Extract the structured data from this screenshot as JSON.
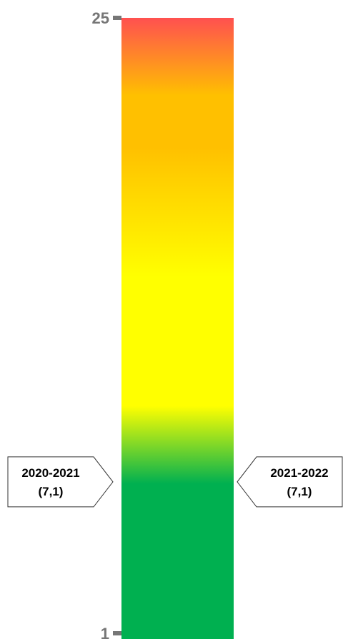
{
  "chart_data": {
    "type": "gauge",
    "orientation": "vertical",
    "ylim": [
      1,
      25
    ],
    "ticks": [
      {
        "value": 25,
        "label": "25"
      },
      {
        "value": 1,
        "label": "1"
      }
    ],
    "color_stops": [
      {
        "value": 1,
        "color": "#00b050"
      },
      {
        "value": 7,
        "color": "#00b050"
      },
      {
        "value": 10,
        "color": "#ffff00"
      },
      {
        "value": 15,
        "color": "#ffff00"
      },
      {
        "value": 20,
        "color": "#ffc000"
      },
      {
        "value": 22,
        "color": "#ffc000"
      },
      {
        "value": 25,
        "color": "#ff5050"
      }
    ],
    "markers": [
      {
        "period": "2020-2021",
        "value_label": "(7,1)",
        "value": 7.1,
        "side": "left"
      },
      {
        "period": "2021-2022",
        "value_label": "(7,1)",
        "value": 7.1,
        "side": "right"
      }
    ]
  }
}
